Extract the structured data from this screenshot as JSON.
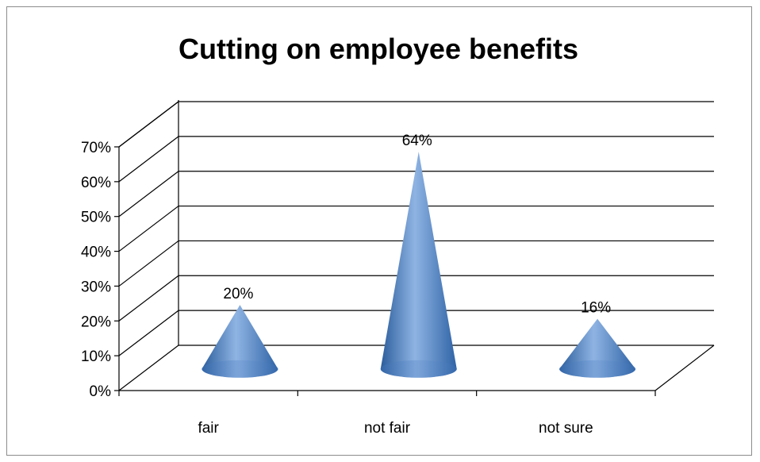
{
  "chart_data": {
    "type": "bar",
    "style": "3d-cone",
    "title": "Cutting on employee benefits",
    "categories": [
      "fair",
      "not fair",
      "not sure"
    ],
    "values": [
      20,
      64,
      16
    ],
    "value_labels": [
      "20%",
      "64%",
      "16%"
    ],
    "y_ticks": [
      "0%",
      "10%",
      "20%",
      "30%",
      "40%",
      "50%",
      "60%",
      "70%"
    ],
    "ylim": [
      0,
      70
    ],
    "grid": true,
    "legend": "none",
    "colors": {
      "cone": "#4f81bd",
      "cone_light": "#8fb4e3",
      "cone_dark": "#2b5d9c",
      "grid": "#000000"
    }
  }
}
